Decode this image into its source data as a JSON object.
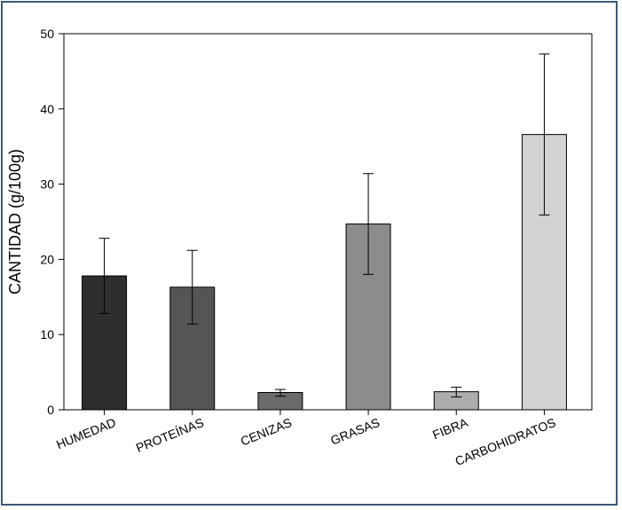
{
  "chart_data": {
    "type": "bar",
    "title": "",
    "xlabel": "",
    "ylabel": "CANTIDAD (g/100g)",
    "ylim": [
      0,
      50
    ],
    "yticks": [
      0,
      10,
      20,
      30,
      40,
      50
    ],
    "yticks_labels": [
      "0",
      "10",
      "20",
      "30",
      "40",
      "50"
    ],
    "grid": false,
    "legend": "none",
    "categories": [
      "HUMEDAD",
      "PROTEÍNAS",
      "CENIZAS",
      "GRASAS",
      "FIBRA",
      "CARBOHIDRATOS"
    ],
    "values": [
      17.8,
      16.3,
      2.3,
      24.7,
      2.4,
      36.6
    ],
    "error_low": [
      12.8,
      11.4,
      1.8,
      18.0,
      1.7,
      25.9
    ],
    "error_high": [
      22.8,
      21.2,
      2.7,
      31.4,
      3.0,
      47.3
    ],
    "colors": [
      "#2e2e2e",
      "#555555",
      "#6b6b6b",
      "#8c8c8c",
      "#adadad",
      "#d2d2d2"
    ]
  }
}
